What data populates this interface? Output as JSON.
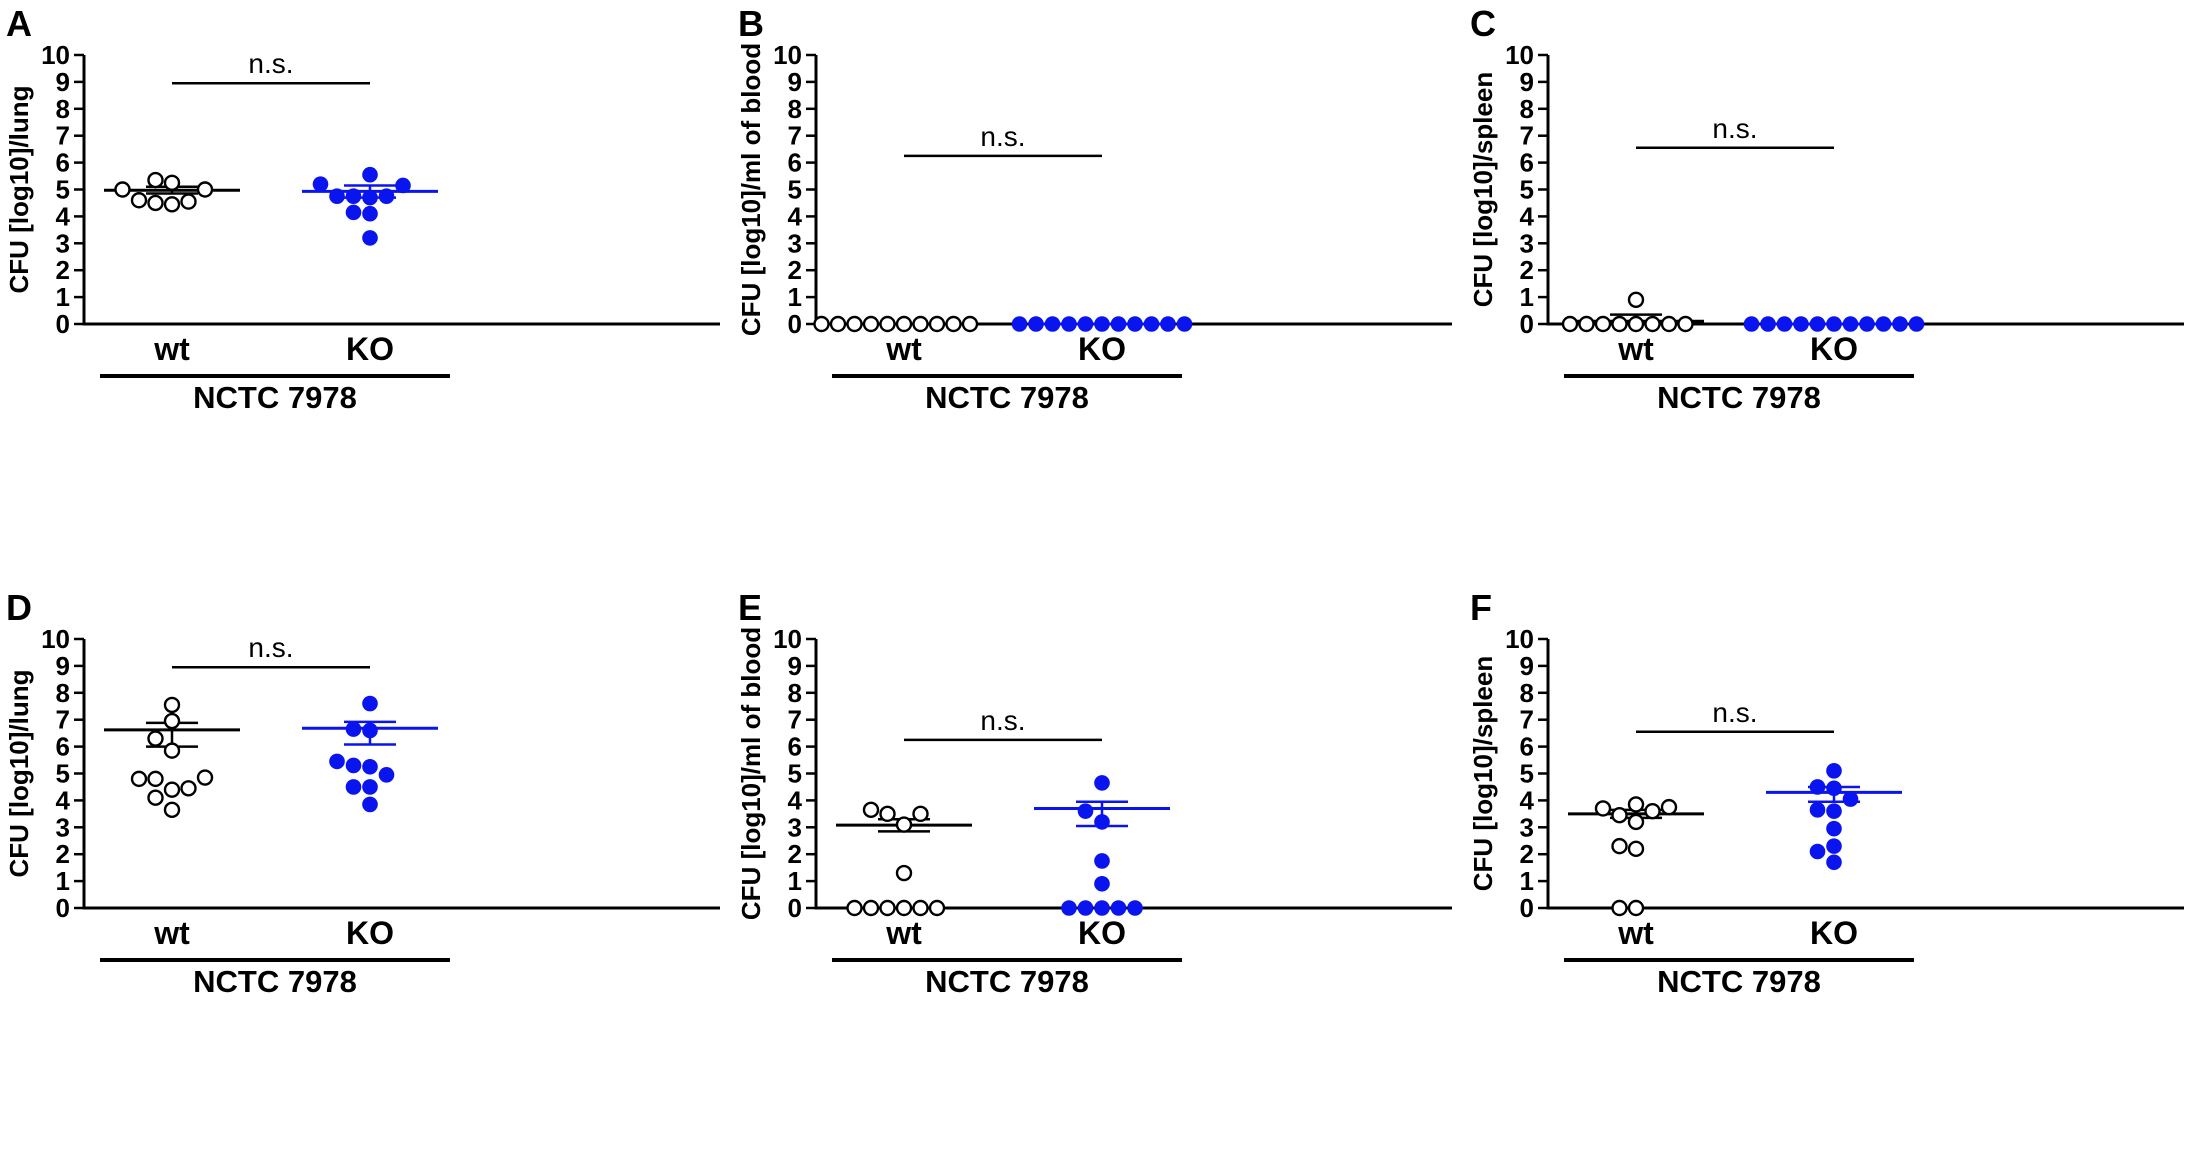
{
  "figure": {
    "colors": {
      "wt": "#000000",
      "ko": "#0a14ee",
      "axis": "#000000"
    }
  },
  "chart_data": [
    {
      "panel": "A",
      "type": "scatter",
      "ylabel": "CFU [log10]/lung",
      "ylim": [
        0,
        10
      ],
      "yticks": [
        0,
        1,
        2,
        3,
        4,
        5,
        6,
        7,
        8,
        9,
        10
      ],
      "categories": [
        "wt",
        "KO"
      ],
      "group_label": "NCTC 7978",
      "significance": {
        "text": "n.s.",
        "level": 8.95
      },
      "series": [
        {
          "name": "wt",
          "style": "open",
          "values": [
            4.55,
            4.45,
            4.5,
            4.6,
            5.0,
            5.25,
            5.35,
            5.0
          ],
          "mean": 4.97,
          "sem_low": 4.85,
          "sem_high": 5.1
        },
        {
          "name": "KO",
          "style": "filled",
          "values": [
            5.2,
            4.75,
            4.7,
            4.1,
            3.2,
            4.15,
            4.75,
            5.55,
            5.15,
            4.75
          ],
          "mean": 4.93,
          "sem_low": 4.7,
          "sem_high": 5.15
        }
      ]
    },
    {
      "panel": "B",
      "type": "scatter",
      "ylabel": "CFU [log10]/ml of blood",
      "ylim": [
        0,
        10
      ],
      "yticks": [
        0,
        1,
        2,
        3,
        4,
        5,
        6,
        7,
        8,
        9,
        10
      ],
      "categories": [
        "wt",
        "KO"
      ],
      "group_label": "NCTC 7978",
      "significance": {
        "text": "n.s.",
        "level": 6.25
      },
      "series": [
        {
          "name": "wt",
          "style": "open",
          "values": [
            0,
            0,
            0,
            0,
            0,
            0,
            0,
            0,
            0,
            0
          ],
          "mean": 0,
          "sem_low": 0,
          "sem_high": 0
        },
        {
          "name": "KO",
          "style": "filled",
          "values": [
            0,
            0,
            0,
            0,
            0,
            0,
            0,
            0,
            0,
            0,
            0
          ],
          "mean": 0,
          "sem_low": 0,
          "sem_high": 0
        }
      ]
    },
    {
      "panel": "C",
      "type": "scatter",
      "ylabel": "CFU [log10]/spleen",
      "ylim": [
        0,
        10
      ],
      "yticks": [
        0,
        1,
        2,
        3,
        4,
        5,
        6,
        7,
        8,
        9,
        10
      ],
      "categories": [
        "wt",
        "KO"
      ],
      "group_label": "NCTC 7978",
      "significance": {
        "text": "n.s.",
        "level": 6.55
      },
      "series": [
        {
          "name": "wt",
          "style": "open",
          "values": [
            0,
            0,
            0,
            0,
            0.9,
            0,
            0,
            0,
            0
          ],
          "mean": 0.1,
          "sem_low": 0,
          "sem_high": 0.35
        },
        {
          "name": "KO",
          "style": "filled",
          "values": [
            0,
            0,
            0,
            0,
            0,
            0,
            0,
            0,
            0,
            0,
            0
          ],
          "mean": 0,
          "sem_low": 0,
          "sem_high": 0
        }
      ]
    },
    {
      "panel": "D",
      "type": "scatter",
      "ylabel": "CFU [log10]/lung",
      "ylim": [
        0,
        10
      ],
      "yticks": [
        0,
        1,
        2,
        3,
        4,
        5,
        6,
        7,
        8,
        9,
        10
      ],
      "categories": [
        "wt",
        "KO"
      ],
      "group_label": "NCTC 7978",
      "significance": {
        "text": "n.s.",
        "level": 8.95
      },
      "series": [
        {
          "name": "wt",
          "style": "open",
          "values": [
            4.8,
            4.4,
            5.85,
            6.3,
            7.55,
            3.65,
            4.1,
            6.95,
            4.45,
            4.8,
            4.85
          ],
          "mean": 6.62,
          "sem_low": 6.0,
          "sem_high": 6.88
        },
        {
          "name": "KO",
          "style": "filled",
          "values": [
            5.3,
            4.5,
            6.65,
            7.6,
            3.85,
            5.45,
            6.6,
            4.5,
            4.95,
            5.25
          ],
          "mean": 6.68,
          "sem_low": 6.08,
          "sem_high": 6.92
        }
      ]
    },
    {
      "panel": "E",
      "type": "scatter",
      "ylabel": "CFU [log10]/ml of blood",
      "ylim": [
        0,
        10
      ],
      "yticks": [
        0,
        1,
        2,
        3,
        4,
        5,
        6,
        7,
        8,
        9,
        10
      ],
      "categories": [
        "wt",
        "KO"
      ],
      "group_label": "NCTC 7978",
      "significance": {
        "text": "n.s.",
        "level": 6.25
      },
      "series": [
        {
          "name": "wt",
          "style": "open",
          "values": [
            3.5,
            0,
            0,
            1.3,
            3.1,
            0,
            3.5,
            3.65,
            0,
            0,
            0
          ],
          "mean": 3.08,
          "sem_low": 2.85,
          "sem_high": 3.3
        },
        {
          "name": "KO",
          "style": "filled",
          "values": [
            0,
            0,
            1.75,
            0.9,
            0,
            3.2,
            4.65,
            3.6,
            0,
            0
          ],
          "mean": 3.7,
          "sem_low": 3.05,
          "sem_high": 3.95
        }
      ]
    },
    {
      "panel": "F",
      "type": "scatter",
      "ylabel": "CFU [log10]/spleen",
      "ylim": [
        0,
        10
      ],
      "yticks": [
        0,
        1,
        2,
        3,
        4,
        5,
        6,
        7,
        8,
        9,
        10
      ],
      "categories": [
        "wt",
        "KO"
      ],
      "group_label": "NCTC 7978",
      "significance": {
        "text": "n.s.",
        "level": 6.55
      },
      "series": [
        {
          "name": "wt",
          "style": "open",
          "values": [
            3.85,
            3.45,
            0,
            2.3,
            3.6,
            3.2,
            0,
            3.7,
            2.2,
            3.75
          ],
          "mean": 3.5,
          "sem_low": 3.35,
          "sem_high": 3.65
        },
        {
          "name": "KO",
          "style": "filled",
          "values": [
            4.5,
            3.6,
            1.7,
            2.95,
            4.05,
            5.1,
            2.1,
            4.45,
            2.3,
            3.65
          ],
          "mean": 4.3,
          "sem_low": 3.95,
          "sem_high": 4.5
        }
      ]
    }
  ]
}
